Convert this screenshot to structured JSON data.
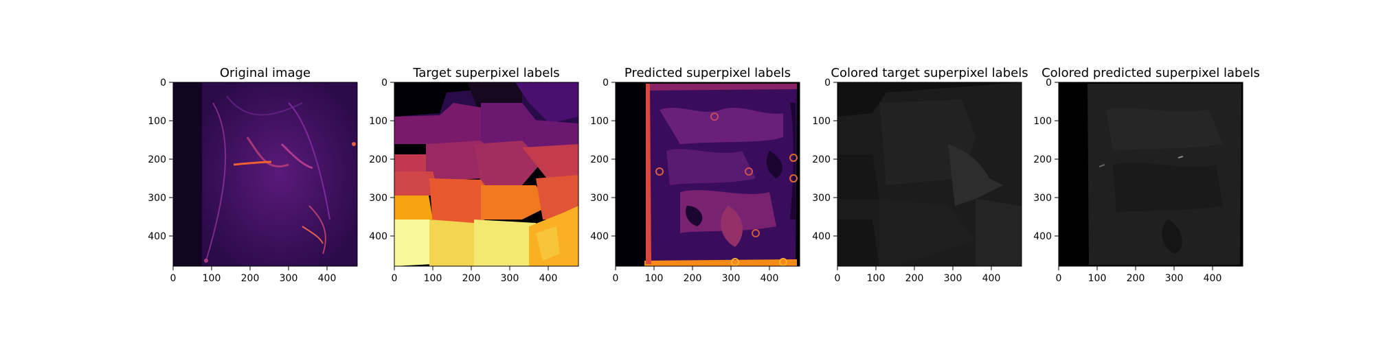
{
  "panels": [
    {
      "title": "Original image",
      "x_ticks": [
        "0",
        "100",
        "200",
        "300",
        "400"
      ],
      "y_ticks": [
        "0",
        "100",
        "200",
        "300",
        "400"
      ],
      "kind": "original"
    },
    {
      "title": "Target superpixel labels",
      "x_ticks": [
        "0",
        "100",
        "200",
        "300",
        "400"
      ],
      "y_ticks": [
        "0",
        "100",
        "200",
        "300",
        "400"
      ],
      "kind": "target"
    },
    {
      "title": "Predicted superpixel labels",
      "x_ticks": [
        "0",
        "100",
        "200",
        "300",
        "400"
      ],
      "y_ticks": [
        "0",
        "100",
        "200",
        "300",
        "400"
      ],
      "kind": "predicted"
    },
    {
      "title": "Colored target superpixel labels",
      "x_ticks": [
        "0",
        "100",
        "200",
        "300",
        "400"
      ],
      "y_ticks": [
        "0",
        "100",
        "200",
        "300",
        "400"
      ],
      "kind": "colored-target"
    },
    {
      "title": "Colored predicted superpixel labels",
      "x_ticks": [
        "0",
        "100",
        "200",
        "300",
        "400"
      ],
      "y_ticks": [
        "0",
        "100",
        "200",
        "300",
        "400"
      ],
      "kind": "colored-predicted"
    }
  ],
  "axis_range": [
    0,
    480
  ],
  "colors": {
    "inferno_dark": "#000004",
    "inferno_purple": "#420a68",
    "inferno_magenta": "#932667",
    "inferno_red": "#dd513a",
    "inferno_orange": "#fca50a",
    "inferno_yellow": "#fcffa4",
    "gray_dark": "#1e1e1e",
    "gray_mid": "#2f2f2f"
  }
}
